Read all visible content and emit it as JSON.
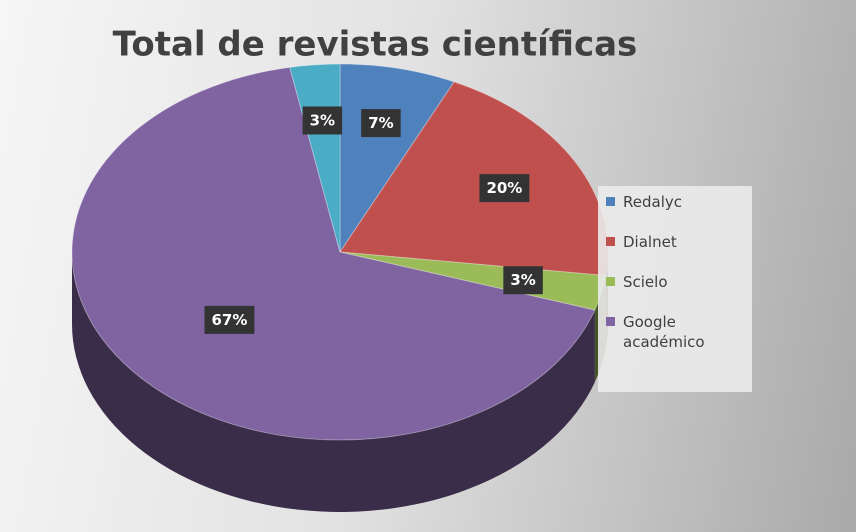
{
  "chart_data": {
    "type": "pie",
    "title": "Total de revistas científicas",
    "categories": [
      "Redalyc",
      "Dialnet",
      "Scielo",
      "Google académico",
      null
    ],
    "values": [
      7,
      20,
      3,
      67,
      3
    ],
    "value_labels": [
      "7%",
      "20%",
      "3%",
      "67%",
      "3%"
    ],
    "colors": [
      "#4f81bd",
      "#c0504d",
      "#9bbb59",
      "#8064a2",
      "#4bacc6"
    ],
    "legend": "right"
  }
}
